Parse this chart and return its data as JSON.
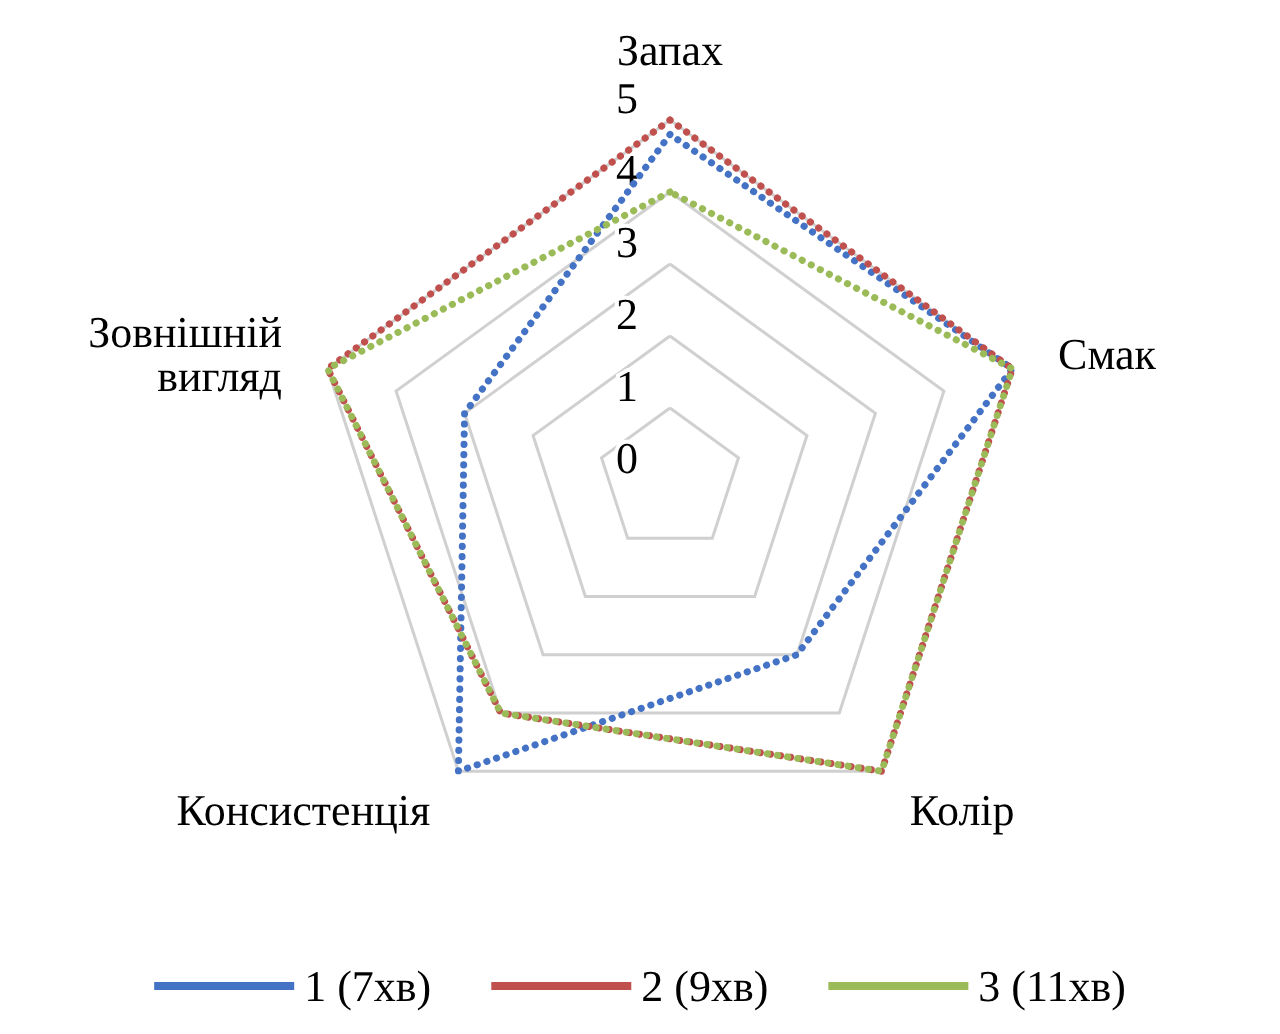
{
  "chart_data": {
    "type": "radar",
    "categories": [
      "Запах",
      "Смак",
      "Колір",
      "Консистенція",
      "Зовнішній вигляд"
    ],
    "series": [
      {
        "name": "1 (7хв)",
        "color": "#4472c4",
        "values": [
          4.8,
          5,
          3,
          5,
          3
        ]
      },
      {
        "name": "2 (9хв)",
        "color": "#c0504d",
        "values": [
          5,
          5,
          5,
          4,
          5
        ]
      },
      {
        "name": "3 (11хв)",
        "color": "#9bbb59",
        "values": [
          4,
          5,
          5,
          4,
          5
        ]
      }
    ],
    "ylim": [
      0,
      5
    ],
    "yticks": [
      0,
      1,
      2,
      3,
      4,
      5
    ],
    "grid": true,
    "legend": "bottom",
    "marker": "none",
    "line_style": "dotted"
  }
}
